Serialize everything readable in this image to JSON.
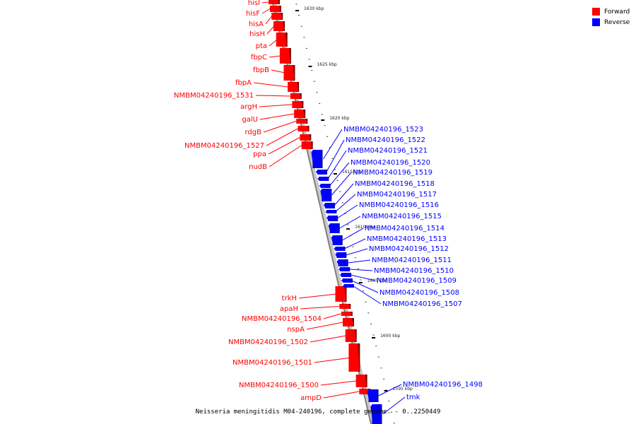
{
  "caption": "Neisseria meningitidis M04-240196, complete genome. - 0..2250449",
  "legend": {
    "forward": {
      "label": "Forward",
      "color": "#ff0000"
    },
    "reverse": {
      "label": "Reverse",
      "color": "#0000ff"
    }
  },
  "colors": {
    "forward": "#ff0000",
    "reverse": "#0000ff",
    "axis": "#7f7f7f"
  },
  "axis_ticks": [
    "1630 kbp",
    "1625 kbp",
    "1620 kbp",
    "1615 kbp",
    "1610 kbp",
    "1605 kbp",
    "1600 kbp",
    "1595 kbp"
  ],
  "forward_genes": [
    "hisI",
    "hisF",
    "hisA",
    "hisH",
    "pta",
    "fbpC",
    "fbpB",
    "fbpA",
    "NMBM04240196_1531",
    "argH",
    "galU",
    "rdgB",
    "NMBM04240196_1527",
    "ppa",
    "nudB",
    "trkH",
    "apaH",
    "NMBM04240196_1504",
    "nspA",
    "NMBM04240196_1502",
    "NMBM04240196_1501",
    "NMBM04240196_1500",
    "ampD"
  ],
  "reverse_genes": [
    "NMBM04240196_1523",
    "NMBM04240196_1522",
    "NMBM04240196_1521",
    "NMBM04240196_1520",
    "NMBM04240196_1519",
    "NMBM04240196_1518",
    "NMBM04240196_1517",
    "NMBM04240196_1516",
    "NMBM04240196_1515",
    "NMBM04240196_1514",
    "NMBM04240196_1513",
    "NMBM04240196_1512",
    "NMBM04240196_1511",
    "NMBM04240196_1510",
    "NMBM04240196_1509",
    "NMBM04240196_1508",
    "NMBM04240196_1507",
    "NMBM04240196_1498",
    "tmk"
  ]
}
